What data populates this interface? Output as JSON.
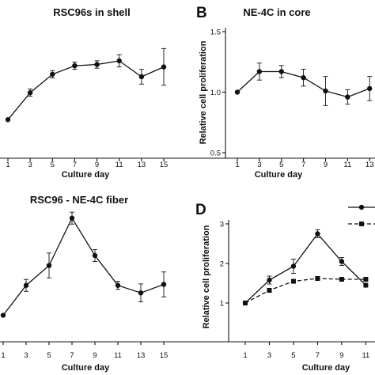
{
  "chart_data": [
    {
      "type": "line",
      "title": "RSC96s in shell",
      "panel_letter": "",
      "xlabel": "Culture day",
      "ylabel": "",
      "x": [
        1,
        3,
        5,
        7,
        9,
        11,
        13,
        15
      ],
      "xticks": [
        "1",
        "3",
        "5",
        "7",
        "9",
        "11",
        "13",
        "15"
      ],
      "yticks": [],
      "series": [
        {
          "name": "",
          "values": [
            0.75,
            0.97,
            1.12,
            1.19,
            1.2,
            1.23,
            1.1,
            1.18
          ],
          "error": [
            0.0,
            0.03,
            0.03,
            0.03,
            0.03,
            0.05,
            0.06,
            0.15
          ],
          "style": "solid",
          "marker": "circle"
        }
      ],
      "grid": false
    },
    {
      "type": "line",
      "title": "NE-4C in core",
      "panel_letter": "B",
      "xlabel": "Culture day",
      "ylabel": "Relative cell proliferation",
      "x": [
        1,
        3,
        5,
        7,
        9,
        11,
        13
      ],
      "xticks": [
        "1",
        "3",
        "5",
        "7",
        "9",
        "11",
        "13"
      ],
      "yticks": [
        "0.5",
        "1.0",
        "1.5"
      ],
      "ylim": [
        0.5,
        1.5
      ],
      "series": [
        {
          "name": "",
          "values": [
            1.0,
            1.17,
            1.17,
            1.12,
            1.01,
            0.96,
            1.03
          ],
          "error": [
            0.0,
            0.07,
            0.05,
            0.07,
            0.12,
            0.06,
            0.1
          ],
          "style": "solid",
          "marker": "circle"
        }
      ],
      "grid": false
    },
    {
      "type": "line",
      "title": "RSC96 - NE-4C fiber",
      "panel_letter": "",
      "xlabel": "Culture day",
      "ylabel": "",
      "x": [
        1,
        3,
        5,
        7,
        9,
        11,
        13,
        15
      ],
      "xticks": [
        "1",
        "3",
        "5",
        "7",
        "9",
        "11",
        "13",
        "15"
      ],
      "yticks": [],
      "series": [
        {
          "name": "",
          "values": [
            1.0,
            1.6,
            2.0,
            2.95,
            2.2,
            1.6,
            1.45,
            1.62
          ],
          "error": [
            0.0,
            0.12,
            0.25,
            0.12,
            0.12,
            0.08,
            0.18,
            0.25
          ],
          "style": "solid",
          "marker": "circle"
        }
      ],
      "grid": false
    },
    {
      "type": "line",
      "title": "",
      "panel_letter": "D",
      "xlabel": "Culture day",
      "ylabel": "Relative cell proliferation",
      "x": [
        1,
        3,
        5,
        7,
        9,
        11
      ],
      "xticks": [
        "1",
        "3",
        "5",
        "7",
        "9",
        "11"
      ],
      "yticks": [
        "1",
        "2",
        "3"
      ],
      "ylim": [
        0.5,
        3.0
      ],
      "series": [
        {
          "name": "",
          "values": [
            1.0,
            1.58,
            1.93,
            2.75,
            2.05,
            1.45
          ],
          "error": [
            0.0,
            0.1,
            0.18,
            0.1,
            0.1,
            0.05
          ],
          "style": "solid",
          "marker": "circle"
        },
        {
          "name": "",
          "values": [
            1.0,
            1.32,
            1.55,
            1.62,
            1.6,
            1.6
          ],
          "error": [
            0.0,
            0.05,
            0.04,
            0.04,
            0.04,
            0.04
          ],
          "style": "dashed",
          "marker": "square"
        }
      ],
      "legend": "top-right",
      "grid": false
    }
  ]
}
